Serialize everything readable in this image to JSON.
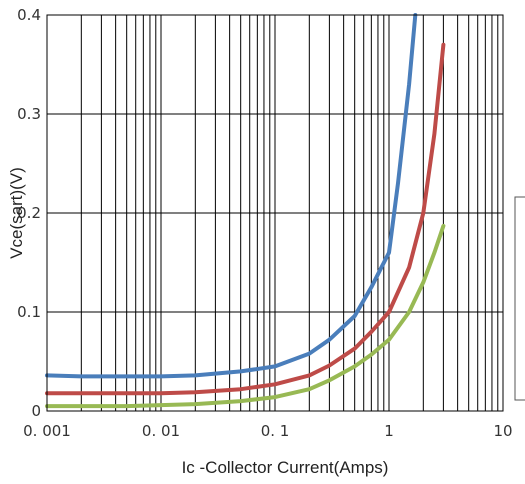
{
  "chart_data": {
    "type": "line",
    "title": "",
    "xlabel": "Ic -Collector Current(Amps)",
    "ylabel": "Vce(sart)(V)",
    "x_scale": "log",
    "xlim": [
      0.001,
      10
    ],
    "ylim": [
      0,
      0.4
    ],
    "x_ticks": [
      "0. 001",
      "0. 01",
      "0. 1",
      "1",
      "10"
    ],
    "y_ticks": [
      "0",
      "0.1",
      "0.2",
      "0.3",
      "0.4"
    ],
    "grid": true,
    "legend": "right (cut off, no entries visible)",
    "series": [
      {
        "color": "#4a7ebb",
        "x": [
          0.001,
          0.002,
          0.005,
          0.01,
          0.02,
          0.05,
          0.1,
          0.2,
          0.3,
          0.5,
          0.7,
          1.0,
          1.2,
          1.5,
          1.7
        ],
        "y": [
          0.036,
          0.035,
          0.035,
          0.035,
          0.036,
          0.04,
          0.045,
          0.058,
          0.072,
          0.096,
          0.125,
          0.16,
          0.23,
          0.33,
          0.4
        ]
      },
      {
        "color": "#be4b48",
        "x": [
          0.001,
          0.002,
          0.005,
          0.01,
          0.02,
          0.05,
          0.1,
          0.2,
          0.3,
          0.5,
          0.7,
          1.0,
          1.5,
          2.0,
          2.5,
          3.0
        ],
        "y": [
          0.018,
          0.018,
          0.018,
          0.018,
          0.019,
          0.022,
          0.027,
          0.036,
          0.046,
          0.063,
          0.08,
          0.1,
          0.145,
          0.2,
          0.28,
          0.37
        ]
      },
      {
        "color": "#98b954",
        "x": [
          0.001,
          0.002,
          0.005,
          0.01,
          0.02,
          0.05,
          0.1,
          0.2,
          0.3,
          0.5,
          0.7,
          1.0,
          1.5,
          2.0,
          2.5,
          3.0
        ],
        "y": [
          0.005,
          0.005,
          0.005,
          0.006,
          0.007,
          0.01,
          0.014,
          0.022,
          0.031,
          0.045,
          0.057,
          0.072,
          0.1,
          0.13,
          0.16,
          0.187
        ]
      }
    ]
  }
}
